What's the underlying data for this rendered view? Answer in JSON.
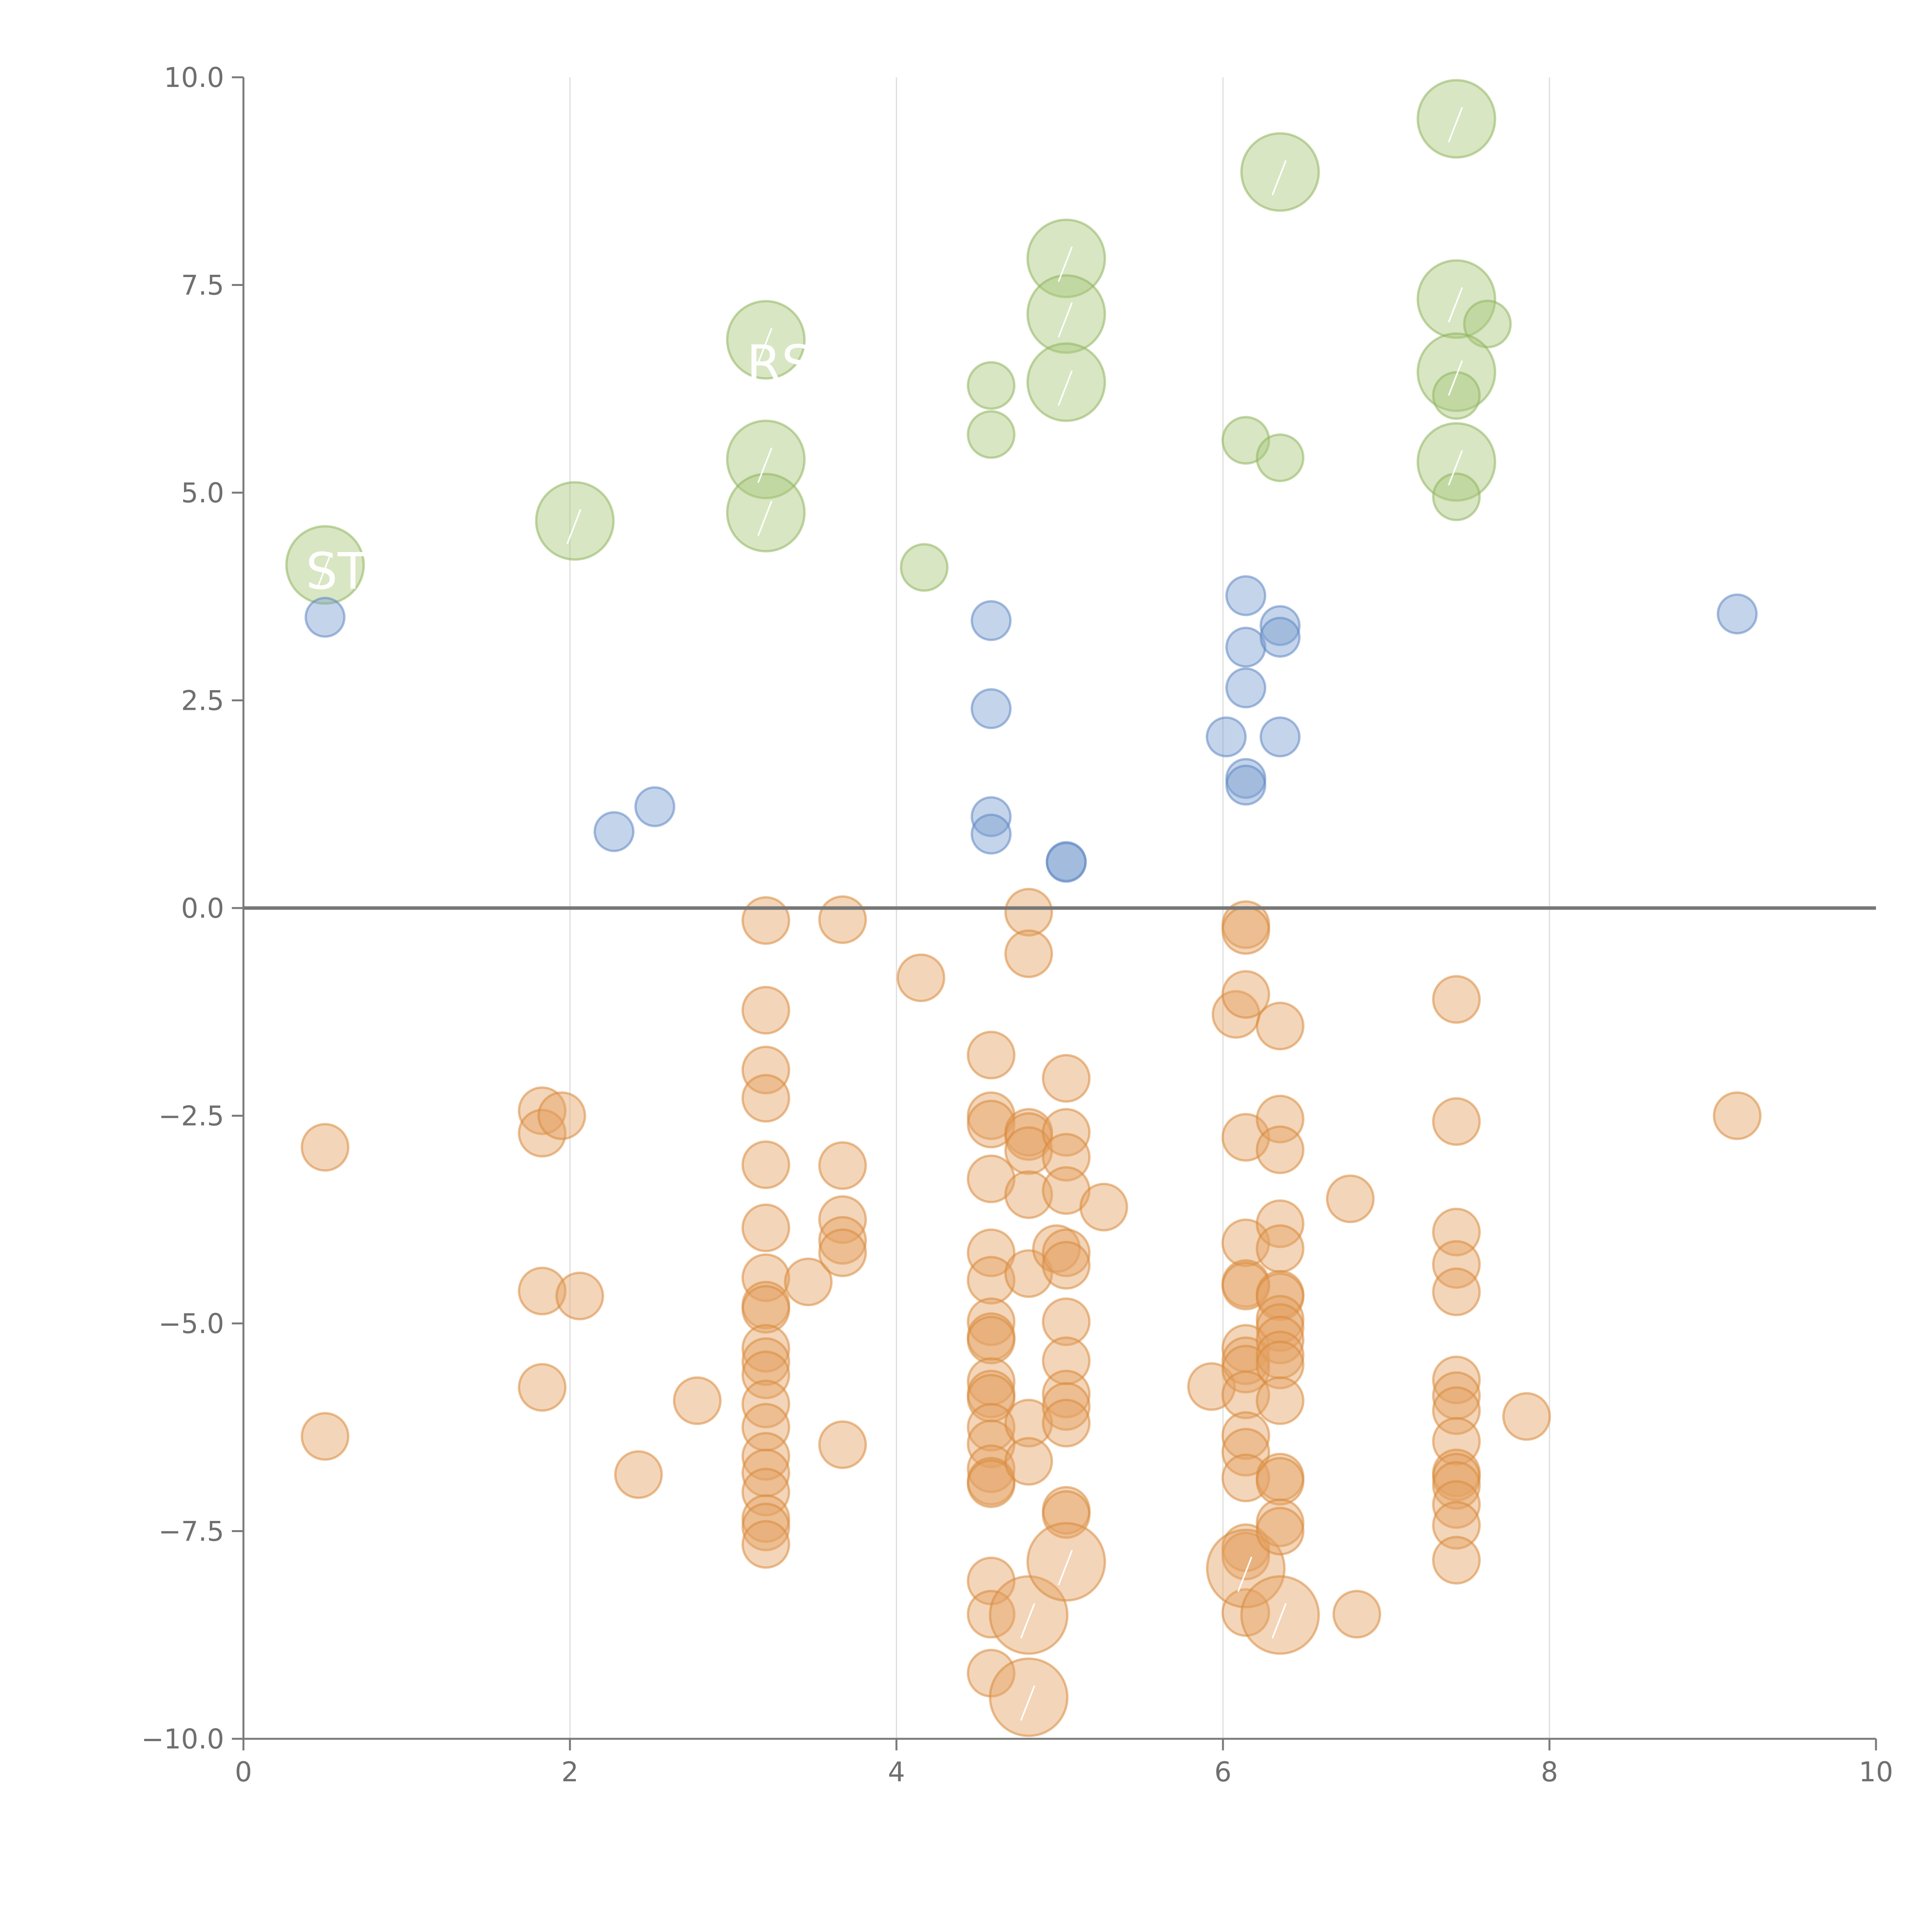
{
  "colors": {
    "positive_small": "#7d9fd1",
    "positive_large": "#a8c77a",
    "negative": "#e4a264",
    "negative_stroke": "#d98a3c",
    "positive_small_stroke": "#5f86c2",
    "positive_large_stroke": "#8fb55e"
  },
  "chart_data": {
    "type": "scatter",
    "title": "",
    "xlabel": "",
    "ylabel": "",
    "xlim": [
      0,
      10
    ],
    "ylim": [
      -10,
      10
    ],
    "grid": "vertical",
    "x_ticks": [
      0,
      2,
      4,
      6,
      8,
      10
    ],
    "x_tick_labels": [
      "0",
      "2",
      "4",
      "6",
      "8",
      "10"
    ],
    "y_ticks": [
      10,
      7.5,
      5,
      2.5,
      0,
      -2.5,
      -5,
      -7.5,
      -10
    ],
    "y_tick_labels": [
      "10.0",
      "7.5",
      "5.0",
      "2.5",
      "0.0",
      "−2.5",
      "−5.0",
      "−7.5",
      "−10.0"
    ],
    "visible_labels": [
      {
        "text": "ST",
        "x": 0.5,
        "y": 4.1
      },
      {
        "text": "RSV",
        "x": 3.2,
        "y": 6.6
      }
    ],
    "series": [
      {
        "name": "large-positive",
        "color_key": "positive_large",
        "points": [
          [
            0.5,
            4.13,
            "L"
          ],
          [
            2.03,
            4.66,
            "L"
          ],
          [
            3.2,
            6.84,
            "L"
          ],
          [
            3.2,
            5.4,
            "L"
          ],
          [
            3.2,
            4.76,
            "L"
          ],
          [
            4.17,
            4.1,
            "S"
          ],
          [
            4.58,
            6.29,
            "S"
          ],
          [
            4.58,
            5.7,
            "S"
          ],
          [
            5.04,
            7.82,
            "L"
          ],
          [
            5.04,
            7.15,
            "L"
          ],
          [
            5.04,
            6.33,
            "L"
          ],
          [
            6.14,
            5.63,
            "S"
          ],
          [
            6.35,
            5.42,
            "S"
          ],
          [
            6.35,
            8.86,
            "L"
          ],
          [
            7.43,
            9.5,
            "L"
          ],
          [
            7.43,
            7.33,
            "L"
          ],
          [
            7.62,
            7.03,
            "S"
          ],
          [
            7.43,
            6.45,
            "L"
          ],
          [
            7.43,
            6.17,
            "S"
          ],
          [
            7.43,
            5.37,
            "L"
          ],
          [
            7.43,
            4.95,
            "S"
          ]
        ]
      },
      {
        "name": "small-positive",
        "color_key": "positive_small",
        "points": [
          [
            0.5,
            3.5
          ],
          [
            2.27,
            0.92
          ],
          [
            2.52,
            1.22
          ],
          [
            4.58,
            3.46
          ],
          [
            4.58,
            2.4
          ],
          [
            4.58,
            1.1
          ],
          [
            4.58,
            0.89
          ],
          [
            5.04,
            0.56
          ],
          [
            5.04,
            0.55
          ],
          [
            6.14,
            3.76
          ],
          [
            6.14,
            3.14
          ],
          [
            6.14,
            2.65
          ],
          [
            6.02,
            2.06
          ],
          [
            6.14,
            1.56
          ],
          [
            6.14,
            1.48
          ],
          [
            6.35,
            3.4
          ],
          [
            6.35,
            3.26
          ],
          [
            6.35,
            2.06
          ],
          [
            9.15,
            3.54
          ]
        ]
      },
      {
        "name": "negative",
        "color_key": "negative",
        "points": [
          [
            0.5,
            -2.88,
            "S"
          ],
          [
            0.5,
            -6.36,
            "S"
          ],
          [
            1.83,
            -2.44,
            "S"
          ],
          [
            1.83,
            -2.71,
            "S"
          ],
          [
            1.95,
            -2.5,
            "S"
          ],
          [
            1.83,
            -4.61,
            "S"
          ],
          [
            2.06,
            -4.67,
            "S"
          ],
          [
            1.83,
            -5.77,
            "S"
          ],
          [
            2.42,
            -6.82,
            "S"
          ],
          [
            2.78,
            -5.93,
            "S"
          ],
          [
            3.2,
            -0.15,
            "S"
          ],
          [
            3.2,
            -1.23,
            "S"
          ],
          [
            3.2,
            -1.95,
            "S"
          ],
          [
            3.2,
            -2.29,
            "S"
          ],
          [
            3.2,
            -3.09,
            "S"
          ],
          [
            3.2,
            -3.85,
            "S"
          ],
          [
            3.2,
            -4.45,
            "S"
          ],
          [
            3.2,
            -4.78,
            "S"
          ],
          [
            3.2,
            -4.83,
            "S"
          ],
          [
            3.2,
            -5.3,
            "S"
          ],
          [
            3.2,
            -5.46,
            "S"
          ],
          [
            3.2,
            -5.62,
            "S"
          ],
          [
            3.2,
            -5.97,
            "S"
          ],
          [
            3.2,
            -6.25,
            "S"
          ],
          [
            3.2,
            -6.6,
            "S"
          ],
          [
            3.2,
            -6.8,
            "S"
          ],
          [
            3.2,
            -7.03,
            "S"
          ],
          [
            3.2,
            -7.35,
            "S"
          ],
          [
            3.2,
            -7.45,
            "S"
          ],
          [
            3.2,
            -7.66,
            "S"
          ],
          [
            3.46,
            -4.5,
            "S"
          ],
          [
            3.67,
            -0.14,
            "S"
          ],
          [
            3.67,
            -3.1,
            "S"
          ],
          [
            3.67,
            -3.75,
            "S"
          ],
          [
            3.67,
            -4.0,
            "S"
          ],
          [
            3.67,
            -4.15,
            "S"
          ],
          [
            3.67,
            -6.46,
            "S"
          ],
          [
            4.15,
            -0.84,
            "S"
          ],
          [
            4.58,
            -1.77,
            "S"
          ],
          [
            4.58,
            -2.5,
            "S"
          ],
          [
            4.58,
            -2.6,
            "S"
          ],
          [
            4.58,
            -3.26,
            "S"
          ],
          [
            4.58,
            -4.15,
            "S"
          ],
          [
            4.58,
            -4.48,
            "S"
          ],
          [
            4.58,
            -4.98,
            "S"
          ],
          [
            4.58,
            -5.16,
            "S"
          ],
          [
            4.58,
            -5.2,
            "S"
          ],
          [
            4.58,
            -5.7,
            "S"
          ],
          [
            4.58,
            -5.85,
            "S"
          ],
          [
            4.58,
            -5.9,
            "S"
          ],
          [
            4.58,
            -6.25,
            "S"
          ],
          [
            4.58,
            -6.45,
            "S"
          ],
          [
            4.58,
            -6.75,
            "S"
          ],
          [
            4.58,
            -6.9,
            "S"
          ],
          [
            4.58,
            -6.93,
            "S"
          ],
          [
            4.58,
            -8.1,
            "S"
          ],
          [
            4.58,
            -8.5,
            "S"
          ],
          [
            4.58,
            -9.21,
            "S"
          ],
          [
            4.81,
            -0.05,
            "S"
          ],
          [
            4.81,
            -0.55,
            "S"
          ],
          [
            4.81,
            -2.7,
            "S"
          ],
          [
            4.81,
            -2.75,
            "S"
          ],
          [
            4.81,
            -2.92,
            "S"
          ],
          [
            4.81,
            -3.45,
            "S"
          ],
          [
            4.81,
            -4.4,
            "S"
          ],
          [
            4.81,
            -6.2,
            "S"
          ],
          [
            4.81,
            -6.66,
            "S"
          ],
          [
            4.81,
            -8.51,
            "L"
          ],
          [
            4.81,
            -9.5,
            "L"
          ],
          [
            5.04,
            -2.05,
            "S"
          ],
          [
            5.04,
            -2.7,
            "S"
          ],
          [
            5.04,
            -3.0,
            "S"
          ],
          [
            5.04,
            -3.4,
            "S"
          ],
          [
            4.98,
            -4.1,
            "S"
          ],
          [
            5.04,
            -4.15,
            "S"
          ],
          [
            5.04,
            -4.3,
            "S"
          ],
          [
            5.04,
            -4.98,
            "S"
          ],
          [
            5.04,
            -5.45,
            "S"
          ],
          [
            5.04,
            -5.85,
            "S"
          ],
          [
            5.04,
            -6.0,
            "S"
          ],
          [
            5.04,
            -6.2,
            "S"
          ],
          [
            5.04,
            -7.25,
            "S"
          ],
          [
            5.04,
            -7.3,
            "S"
          ],
          [
            5.04,
            -7.87,
            "L"
          ],
          [
            5.27,
            -3.6,
            "S"
          ],
          [
            5.93,
            -5.76,
            "S"
          ],
          [
            6.08,
            -1.28,
            "S"
          ],
          [
            6.14,
            -0.2,
            "S"
          ],
          [
            6.14,
            -0.27,
            "S"
          ],
          [
            6.14,
            -1.04,
            "S"
          ],
          [
            6.14,
            -2.76,
            "S"
          ],
          [
            6.14,
            -4.03,
            "S"
          ],
          [
            6.14,
            -4.52,
            "S"
          ],
          [
            6.14,
            -4.55,
            "S"
          ],
          [
            6.14,
            -5.3,
            "S"
          ],
          [
            6.14,
            -5.45,
            "S"
          ],
          [
            6.14,
            -5.55,
            "S"
          ],
          [
            6.14,
            -5.86,
            "S"
          ],
          [
            6.14,
            -6.35,
            "S"
          ],
          [
            6.14,
            -6.55,
            "S"
          ],
          [
            6.14,
            -6.86,
            "S"
          ],
          [
            6.14,
            -7.7,
            "S"
          ],
          [
            6.14,
            -7.8,
            "S"
          ],
          [
            6.14,
            -8.48,
            "S"
          ],
          [
            6.14,
            -7.95,
            "L"
          ],
          [
            6.35,
            -1.42,
            "S"
          ],
          [
            6.35,
            -2.54,
            "S"
          ],
          [
            6.35,
            -2.91,
            "S"
          ],
          [
            6.35,
            -3.8,
            "S"
          ],
          [
            6.35,
            -4.1,
            "S"
          ],
          [
            6.35,
            -4.65,
            "S"
          ],
          [
            6.35,
            -4.68,
            "S"
          ],
          [
            6.35,
            -4.95,
            "S"
          ],
          [
            6.35,
            -5.05,
            "S"
          ],
          [
            6.35,
            -5.2,
            "S"
          ],
          [
            6.35,
            -5.38,
            "S"
          ],
          [
            6.35,
            -5.5,
            "S"
          ],
          [
            6.35,
            -5.93,
            "S"
          ],
          [
            6.35,
            -6.85,
            "S"
          ],
          [
            6.35,
            -6.9,
            "S"
          ],
          [
            6.35,
            -7.4,
            "S"
          ],
          [
            6.35,
            -7.5,
            "S"
          ],
          [
            6.35,
            -8.51,
            "L"
          ],
          [
            6.78,
            -3.5,
            "S"
          ],
          [
            6.82,
            -8.5,
            "S"
          ],
          [
            7.43,
            -1.1,
            "S"
          ],
          [
            7.43,
            -2.57,
            "S"
          ],
          [
            7.43,
            -3.9,
            "S"
          ],
          [
            7.43,
            -4.29,
            "S"
          ],
          [
            7.43,
            -4.62,
            "S"
          ],
          [
            7.43,
            -5.68,
            "S"
          ],
          [
            7.43,
            -5.87,
            "S"
          ],
          [
            7.43,
            -6.05,
            "S"
          ],
          [
            7.43,
            -6.42,
            "S"
          ],
          [
            7.43,
            -6.8,
            "S"
          ],
          [
            7.43,
            -6.85,
            "S"
          ],
          [
            7.43,
            -6.95,
            "S"
          ],
          [
            7.43,
            -7.18,
            "S"
          ],
          [
            7.43,
            -7.43,
            "S"
          ],
          [
            7.43,
            -7.85,
            "S"
          ],
          [
            7.86,
            -6.12,
            "S"
          ],
          [
            9.15,
            -2.5,
            "S"
          ]
        ]
      }
    ]
  }
}
